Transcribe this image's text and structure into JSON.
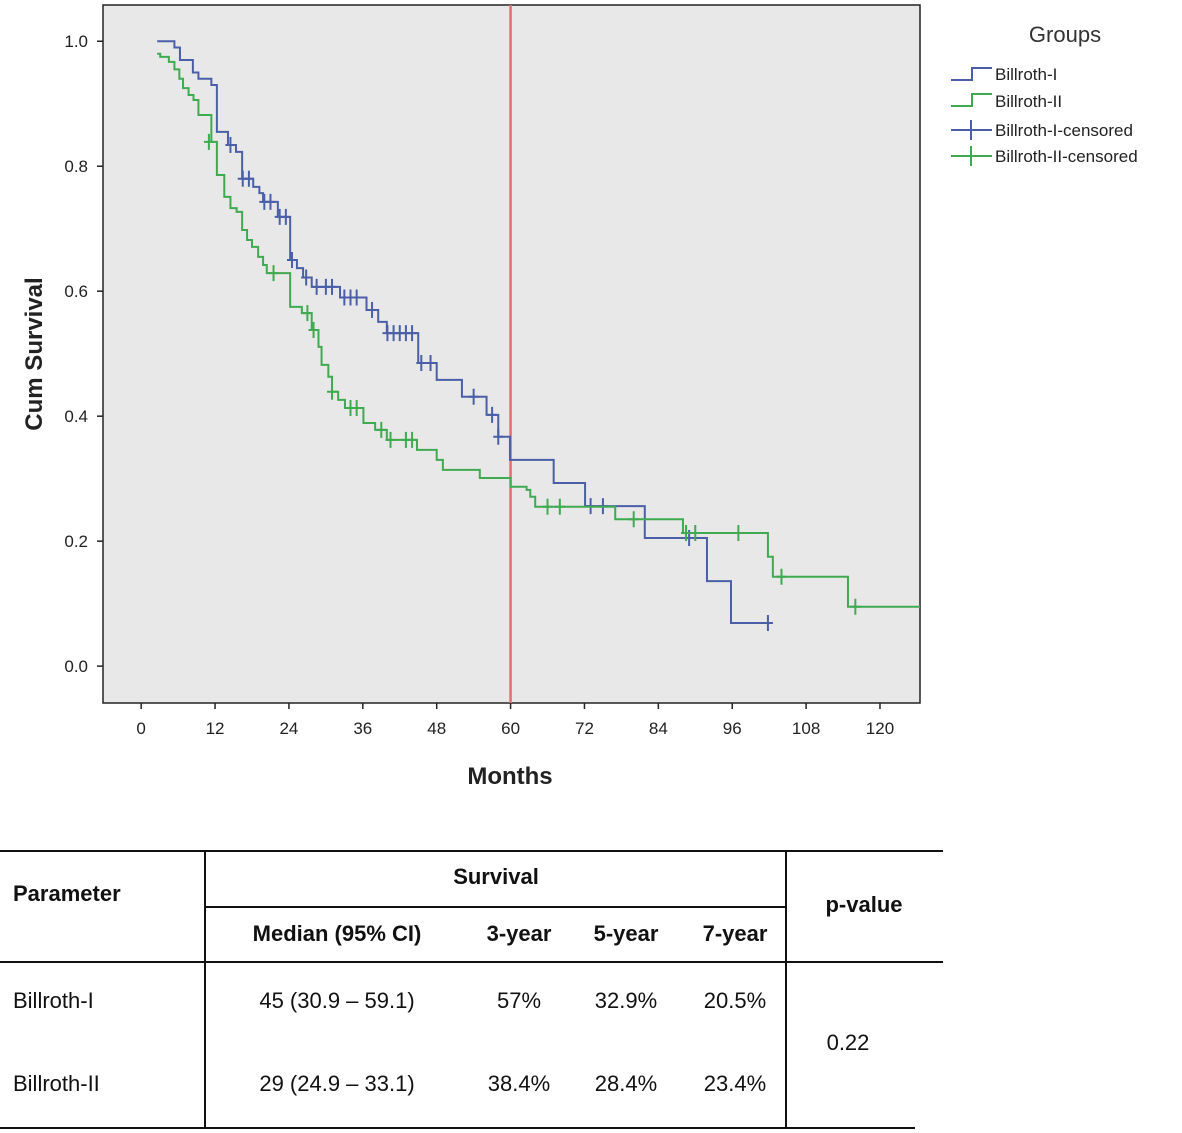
{
  "chart_data": {
    "type": "line",
    "subtype": "kaplan-meier step",
    "xlabel": "Months",
    "ylabel": "Cum Survival",
    "xlim": [
      -6.2,
      126.5
    ],
    "ylim": [
      -0.059,
      1.058
    ],
    "xticks": [
      0,
      12,
      24,
      36,
      48,
      60,
      72,
      84,
      96,
      108,
      120
    ],
    "yticks": [
      "0.0",
      "0.2",
      "0.4",
      "0.6",
      "0.8",
      "1.0"
    ],
    "grid": false,
    "background": "#e8e8e8",
    "reference_line": {
      "x": 60,
      "color": "#e07070"
    },
    "legend": {
      "title": "Groups",
      "placement": "right",
      "entries": [
        "Billroth-I",
        "Billroth-II",
        "Billroth-I-censored",
        "Billroth-II-censored"
      ]
    },
    "series": [
      {
        "name": "Billroth-I",
        "color": "#4a5fa8",
        "steps": [
          [
            2.6,
            1.0
          ],
          [
            5.4,
            0.99
          ],
          [
            6.3,
            0.97
          ],
          [
            8.4,
            0.95
          ],
          [
            9.3,
            0.94
          ],
          [
            11.4,
            0.93
          ],
          [
            12.3,
            0.855
          ],
          [
            14.1,
            0.834
          ],
          [
            15.4,
            0.823
          ],
          [
            16.4,
            0.78
          ],
          [
            18.2,
            0.767
          ],
          [
            19.2,
            0.757
          ],
          [
            19.8,
            0.743
          ],
          [
            22.2,
            0.719
          ],
          [
            24.2,
            0.65
          ],
          [
            25.3,
            0.637
          ],
          [
            26.3,
            0.622
          ],
          [
            27.7,
            0.607
          ],
          [
            32.3,
            0.59
          ],
          [
            36.6,
            0.57
          ],
          [
            38.5,
            0.551
          ],
          [
            39.9,
            0.533
          ],
          [
            45,
            0.485
          ],
          [
            48,
            0.458
          ],
          [
            52.1,
            0.431
          ],
          [
            56.1,
            0.402
          ],
          [
            58,
            0.367
          ],
          [
            59.9,
            0.33
          ],
          [
            67,
            0.293
          ],
          [
            72.1,
            0.256
          ],
          [
            81.8,
            0.205
          ],
          [
            91.9,
            0.136
          ],
          [
            95.8,
            0.069
          ]
        ],
        "end": 101.8,
        "censored": [
          [
            14.5,
            0.834
          ],
          [
            16.5,
            0.78
          ],
          [
            17.5,
            0.78
          ],
          [
            20,
            0.743
          ],
          [
            21,
            0.743
          ],
          [
            22.5,
            0.719
          ],
          [
            23.5,
            0.719
          ],
          [
            24.5,
            0.65
          ],
          [
            26.8,
            0.622
          ],
          [
            28.5,
            0.607
          ],
          [
            30,
            0.607
          ],
          [
            31,
            0.607
          ],
          [
            33,
            0.59
          ],
          [
            34,
            0.59
          ],
          [
            35,
            0.59
          ],
          [
            37.5,
            0.57
          ],
          [
            40,
            0.533
          ],
          [
            41,
            0.533
          ],
          [
            42,
            0.533
          ],
          [
            43,
            0.533
          ],
          [
            44,
            0.533
          ],
          [
            45.5,
            0.485
          ],
          [
            47,
            0.485
          ],
          [
            54,
            0.431
          ],
          [
            57,
            0.402
          ],
          [
            58,
            0.367
          ],
          [
            73,
            0.256
          ],
          [
            75,
            0.256
          ],
          [
            89,
            0.205
          ],
          [
            101.8,
            0.069
          ]
        ]
      },
      {
        "name": "Billroth-II",
        "color": "#3faa4f",
        "steps": [
          [
            2.6,
            0.98
          ],
          [
            3.1,
            0.975
          ],
          [
            4.5,
            0.967
          ],
          [
            5.4,
            0.955
          ],
          [
            6.2,
            0.94
          ],
          [
            6.8,
            0.925
          ],
          [
            7.7,
            0.914
          ],
          [
            8.5,
            0.906
          ],
          [
            9.3,
            0.882
          ],
          [
            11.4,
            0.839
          ],
          [
            12.3,
            0.786
          ],
          [
            13.5,
            0.751
          ],
          [
            14.5,
            0.733
          ],
          [
            15.5,
            0.727
          ],
          [
            16.4,
            0.698
          ],
          [
            17.2,
            0.682
          ],
          [
            18,
            0.671
          ],
          [
            19,
            0.655
          ],
          [
            19.8,
            0.642
          ],
          [
            20.4,
            0.629
          ],
          [
            24.2,
            0.575
          ],
          [
            26.1,
            0.565
          ],
          [
            27.7,
            0.538
          ],
          [
            28.8,
            0.511
          ],
          [
            29.3,
            0.482
          ],
          [
            30.4,
            0.463
          ],
          [
            31,
            0.439
          ],
          [
            32,
            0.426
          ],
          [
            33.1,
            0.413
          ],
          [
            36.1,
            0.389
          ],
          [
            38,
            0.378
          ],
          [
            39.9,
            0.362
          ],
          [
            44.8,
            0.346
          ],
          [
            48,
            0.33
          ],
          [
            49,
            0.314
          ],
          [
            55,
            0.301
          ],
          [
            60,
            0.287
          ],
          [
            62.6,
            0.282
          ],
          [
            63.2,
            0.271
          ],
          [
            64,
            0.255
          ],
          [
            77,
            0.235
          ],
          [
            88,
            0.213
          ],
          [
            101.8,
            0.175
          ],
          [
            102.6,
            0.143
          ],
          [
            114.8,
            0.095
          ]
        ],
        "end": 127,
        "censored": [
          [
            11,
            0.839
          ],
          [
            21.5,
            0.629
          ],
          [
            27,
            0.565
          ],
          [
            28,
            0.538
          ],
          [
            31,
            0.439
          ],
          [
            34,
            0.413
          ],
          [
            35,
            0.413
          ],
          [
            39,
            0.378
          ],
          [
            40.5,
            0.362
          ],
          [
            43,
            0.362
          ],
          [
            44,
            0.362
          ],
          [
            66,
            0.255
          ],
          [
            68,
            0.255
          ],
          [
            80,
            0.235
          ],
          [
            88.5,
            0.213
          ],
          [
            90,
            0.213
          ],
          [
            97,
            0.213
          ],
          [
            104,
            0.143
          ],
          [
            116,
            0.095
          ]
        ]
      }
    ]
  },
  "table": {
    "headers": {
      "parameter": "Parameter",
      "survival": "Survival",
      "p_value": "p-value",
      "sub": [
        "Median (95% CI)",
        "3-year",
        "5-year",
        "7-year"
      ]
    },
    "rows": [
      {
        "parameter": "Billroth-I",
        "median": "45 (30.9 – 59.1)",
        "y3": "57%",
        "y5": "32.9%",
        "y7": "20.5%"
      },
      {
        "parameter": "Billroth-II",
        "median": "29 (24.9 – 33.1)",
        "y3": "38.4%",
        "y5": "28.4%",
        "y7": "23.4%"
      }
    ],
    "p_value": "0.22"
  }
}
